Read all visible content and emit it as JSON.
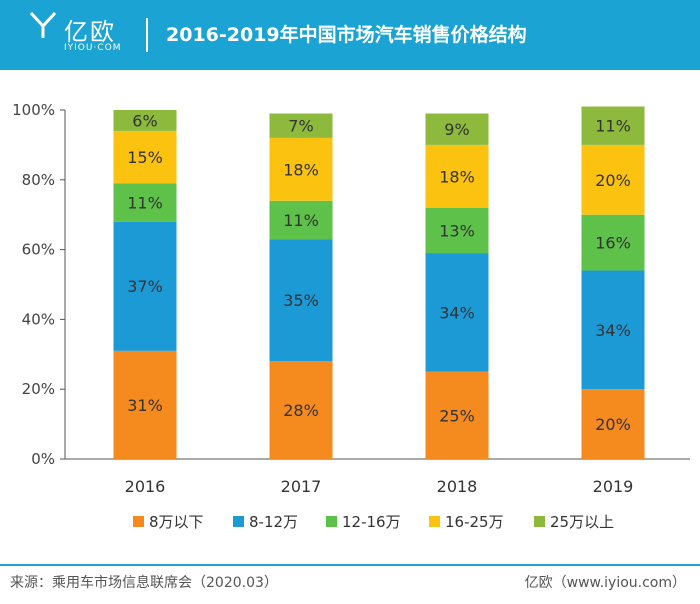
{
  "header": {
    "logo_text": "亿欧",
    "logo_sub": "IYIOU·COM",
    "title": "2016-2019年中国市场汽车销售价格结构"
  },
  "footer": {
    "source": "来源：乘用车市场信息联席会（2020.03）",
    "brand": "亿欧（www.iyiou.com）"
  },
  "chart_data": {
    "type": "bar",
    "stacked": true,
    "categories": [
      "2016",
      "2017",
      "2018",
      "2019"
    ],
    "series": [
      {
        "name": "8万以下",
        "values": [
          31,
          28,
          25,
          20
        ],
        "color": "#f58a1f"
      },
      {
        "name": "8-12万",
        "values": [
          37,
          35,
          34,
          34
        ],
        "color": "#1b9ad6"
      },
      {
        "name": "12-16万",
        "values": [
          11,
          11,
          13,
          16
        ],
        "color": "#5ec24a"
      },
      {
        "name": "16-25万",
        "values": [
          15,
          18,
          18,
          20
        ],
        "color": "#fbc20f"
      },
      {
        "name": "25万以上",
        "values": [
          6,
          7,
          9,
          11
        ],
        "color": "#8dba3c"
      }
    ],
    "yticks": [
      "0%",
      "20%",
      "40%",
      "60%",
      "80%",
      "100%"
    ],
    "ylim": [
      0,
      100
    ],
    "grid": false,
    "legend": "bottom"
  }
}
